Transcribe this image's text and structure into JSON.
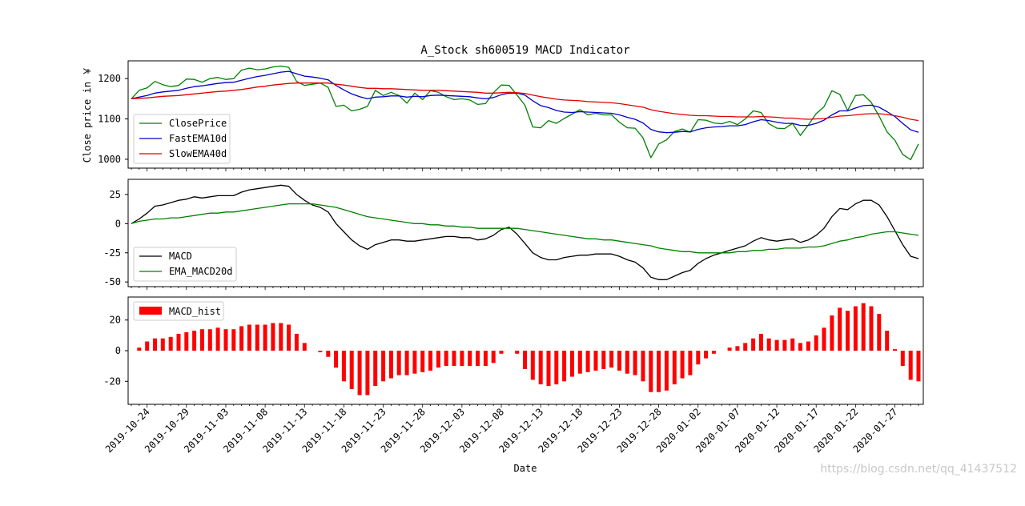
{
  "title": "A_Stock sh600519 MACD Indicator",
  "watermark": "https://blog.csdn.net/qq_41437512",
  "chart_data": [
    {
      "type": "line",
      "panel": "price",
      "ylabel": "Close price in ￥",
      "ylim": [
        978,
        1244
      ],
      "yticks": [
        1000,
        1100,
        1200
      ],
      "legend": "lower-left",
      "series": [
        {
          "name": "ClosePrice",
          "color": "#008000",
          "values": [
            1150,
            1171,
            1177,
            1193,
            1185,
            1180,
            1183,
            1199,
            1198,
            1191,
            1200,
            1203,
            1198,
            1200,
            1221,
            1226,
            1222,
            1224,
            1229,
            1231,
            1228,
            1193,
            1183,
            1186,
            1189,
            1178,
            1131,
            1134,
            1120,
            1124,
            1131,
            1171,
            1158,
            1166,
            1158,
            1139,
            1164,
            1148,
            1170,
            1166,
            1155,
            1148,
            1150,
            1147,
            1136,
            1138,
            1165,
            1184,
            1183,
            1159,
            1134,
            1080,
            1078,
            1096,
            1089,
            1101,
            1112,
            1123,
            1110,
            1114,
            1110,
            1110,
            1092,
            1078,
            1077,
            1053,
            1004,
            1038,
            1048,
            1069,
            1075,
            1067,
            1098,
            1097,
            1090,
            1088,
            1094,
            1086,
            1100,
            1120,
            1116,
            1088,
            1077,
            1076,
            1089,
            1059,
            1085,
            1113,
            1130,
            1170,
            1161,
            1121,
            1158,
            1160,
            1141,
            1107,
            1068,
            1047,
            1012,
            999,
            1038
          ]
        },
        {
          "name": "FastEMA10d",
          "color": "#0000cc",
          "values": [
            1150,
            1154,
            1158,
            1164,
            1167,
            1169,
            1171,
            1176,
            1180,
            1182,
            1185,
            1188,
            1190,
            1191,
            1196,
            1201,
            1205,
            1208,
            1212,
            1216,
            1218,
            1212,
            1206,
            1204,
            1201,
            1197,
            1183,
            1172,
            1162,
            1155,
            1150,
            1154,
            1155,
            1157,
            1157,
            1154,
            1156,
            1155,
            1158,
            1159,
            1158,
            1157,
            1156,
            1155,
            1152,
            1150,
            1153,
            1160,
            1164,
            1164,
            1159,
            1145,
            1133,
            1128,
            1121,
            1117,
            1116,
            1118,
            1117,
            1116,
            1115,
            1114,
            1110,
            1104,
            1099,
            1090,
            1074,
            1068,
            1066,
            1067,
            1069,
            1068,
            1074,
            1078,
            1080,
            1081,
            1083,
            1083,
            1086,
            1093,
            1098,
            1096,
            1092,
            1089,
            1089,
            1084,
            1084,
            1089,
            1097,
            1110,
            1120,
            1120,
            1127,
            1133,
            1134,
            1129,
            1118,
            1106,
            1089,
            1073,
            1067
          ]
        },
        {
          "name": "SlowEMA40d",
          "color": "#e00000",
          "values": [
            1150,
            1151,
            1152,
            1154,
            1156,
            1157,
            1158,
            1160,
            1162,
            1164,
            1166,
            1168,
            1169,
            1171,
            1173,
            1176,
            1179,
            1181,
            1184,
            1186,
            1188,
            1189,
            1189,
            1189,
            1189,
            1189,
            1186,
            1184,
            1181,
            1178,
            1176,
            1176,
            1175,
            1175,
            1174,
            1173,
            1172,
            1171,
            1171,
            1171,
            1170,
            1169,
            1168,
            1167,
            1166,
            1164,
            1164,
            1165,
            1166,
            1165,
            1163,
            1159,
            1155,
            1152,
            1149,
            1147,
            1146,
            1145,
            1143,
            1142,
            1141,
            1140,
            1138,
            1135,
            1132,
            1129,
            1123,
            1119,
            1116,
            1113,
            1111,
            1109,
            1108,
            1108,
            1107,
            1106,
            1106,
            1105,
            1105,
            1105,
            1106,
            1105,
            1104,
            1102,
            1102,
            1100,
            1099,
            1100,
            1101,
            1104,
            1107,
            1108,
            1110,
            1112,
            1113,
            1113,
            1111,
            1108,
            1104,
            1099,
            1096
          ]
        }
      ]
    },
    {
      "type": "line",
      "panel": "macd",
      "ylim": [
        -54,
        38
      ],
      "yticks": [
        -50,
        -25,
        0,
        25
      ],
      "legend": "lower-left",
      "series": [
        {
          "name": "MACD",
          "color": "#000000",
          "values": [
            0,
            4,
            9,
            15,
            16,
            18,
            20,
            21,
            23,
            22,
            23,
            24,
            24,
            24,
            27,
            29,
            30,
            31,
            32,
            33,
            32,
            25,
            20,
            16,
            14,
            10,
            0,
            -7,
            -14,
            -19,
            -22,
            -18,
            -16,
            -14,
            -14,
            -15,
            -15,
            -14,
            -13,
            -12,
            -11,
            -11,
            -12,
            -12,
            -14,
            -13,
            -10,
            -5,
            -3,
            -9,
            -17,
            -25,
            -29,
            -31,
            -31,
            -29,
            -28,
            -27,
            -27,
            -26,
            -26,
            -26,
            -28,
            -31,
            -33,
            -38,
            -46,
            -48,
            -48,
            -45,
            -42,
            -40,
            -34,
            -30,
            -27,
            -25,
            -23,
            -21,
            -19,
            -15,
            -12,
            -14,
            -15,
            -14,
            -13,
            -16,
            -14,
            -10,
            -4,
            6,
            13,
            12,
            17,
            20,
            20,
            16,
            6,
            -6,
            -18,
            -28,
            -30
          ]
        },
        {
          "name": "EMA_MACD20d",
          "color": "#008000",
          "values": [
            0,
            2,
            3,
            4,
            4,
            5,
            5,
            6,
            7,
            8,
            9,
            9,
            10,
            10,
            11,
            12,
            13,
            14,
            15,
            16,
            17,
            17,
            17,
            17,
            16,
            15,
            14,
            12,
            10,
            8,
            6,
            5,
            4,
            3,
            2,
            1,
            0,
            0,
            -1,
            -1,
            -2,
            -2,
            -3,
            -3,
            -4,
            -4,
            -4,
            -4,
            -4,
            -4,
            -5,
            -6,
            -7,
            -8,
            -9,
            -10,
            -11,
            -12,
            -13,
            -13,
            -14,
            -14,
            -15,
            -16,
            -17,
            -18,
            -19,
            -21,
            -22,
            -23,
            -24,
            -24,
            -25,
            -25,
            -25,
            -25,
            -25,
            -24,
            -24,
            -23,
            -23,
            -22,
            -22,
            -21,
            -21,
            -21,
            -20,
            -20,
            -19,
            -17,
            -15,
            -14,
            -12,
            -11,
            -9,
            -8,
            -7,
            -7,
            -8,
            -9,
            -10
          ]
        }
      ]
    },
    {
      "type": "bar",
      "panel": "hist",
      "ylim": [
        -35,
        35
      ],
      "yticks": [
        -20,
        0,
        20
      ],
      "legend": "upper-left",
      "series": [
        {
          "name": "MACD_hist",
          "color": "#ff0000",
          "values": [
            0,
            2,
            6,
            8,
            8,
            9,
            11,
            12,
            13,
            14,
            14,
            15,
            14,
            14,
            16,
            17,
            17,
            17,
            18,
            18,
            17,
            11,
            5,
            0,
            -1,
            -4,
            -11,
            -20,
            -25,
            -29,
            -29,
            -23,
            -20,
            -18,
            -16,
            -16,
            -15,
            -14,
            -13,
            -11,
            -10,
            -10,
            -10,
            -10,
            -10,
            -10,
            -8,
            -2,
            0,
            -2,
            -12,
            -19,
            -22,
            -23,
            -22,
            -20,
            -17,
            -15,
            -14,
            -13,
            -12,
            -11,
            -13,
            -15,
            -16,
            -20,
            -27,
            -27,
            -26,
            -22,
            -18,
            -16,
            -9,
            -5,
            -2,
            0,
            2,
            3,
            5,
            8,
            11,
            8,
            7,
            7,
            8,
            5,
            6,
            10,
            15,
            23,
            28,
            26,
            29,
            31,
            29,
            24,
            13,
            1,
            -10,
            -19,
            -20
          ]
        }
      ]
    }
  ],
  "x_axis": {
    "xlabel": "Date",
    "tick_labels": [
      "2019-10-24",
      "2019-10-29",
      "2019-11-03",
      "2019-11-08",
      "2019-11-13",
      "2019-11-18",
      "2019-11-23",
      "2019-11-28",
      "2019-12-03",
      "2019-12-08",
      "2019-12-13",
      "2019-12-18",
      "2019-12-23",
      "2019-12-28",
      "2020-01-02",
      "2020-01-07",
      "2020-01-12",
      "2020-01-17",
      "2020-01-22",
      "2020-01-27"
    ]
  }
}
